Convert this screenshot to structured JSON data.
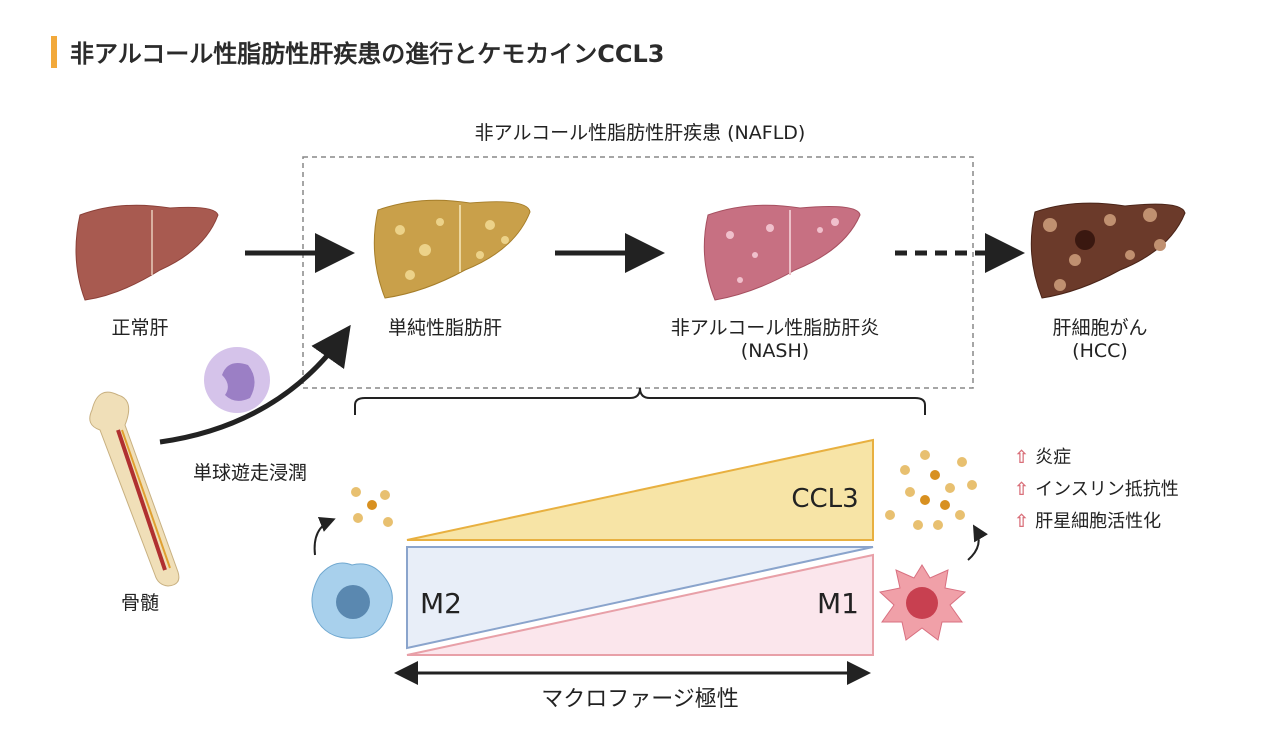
{
  "title": "非アルコール性脂肪性肝疾患の進行とケモカインCCL3",
  "nafld_label": "非アルコール性脂肪性肝疾患 (NAFLD)",
  "stages": {
    "normal": "正常肝",
    "simple_steatosis": "単純性脂肪肝",
    "nash": "非アルコール性脂肪肝炎",
    "nash_abbr": "(NASH)",
    "hcc": "肝細胞がん",
    "hcc_abbr": "(HCC)"
  },
  "monocyte_label": "単球遊走浸潤",
  "bone_marrow_label": "骨髄",
  "ccl3_label": "CCL3",
  "m2_label": "M2",
  "m1_label": "M1",
  "polarity_label": "マクロファージ極性",
  "effects": [
    "炎症",
    "インスリン抵抗性",
    "肝星細胞活性化"
  ],
  "colors": {
    "accent": "#f2a93b",
    "ccl3": "#f7e4a6",
    "m2": "#e8eef8",
    "m1": "#fbe6ec",
    "up_arrow": "#d9707a"
  }
}
